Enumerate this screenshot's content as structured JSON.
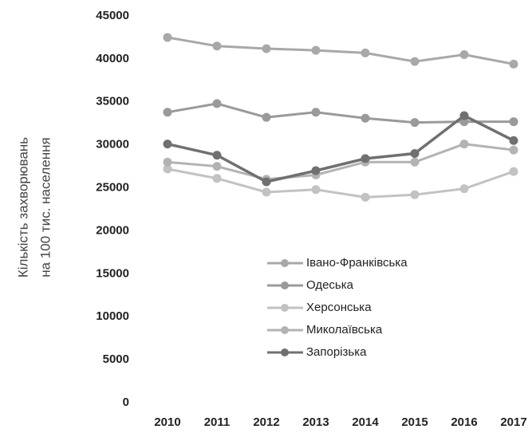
{
  "chart_data": {
    "type": "line",
    "y_label": [
      "Кількість захворювань",
      "на 100 тис. населення"
    ],
    "categories": [
      "2010",
      "2011",
      "2012",
      "2013",
      "2014",
      "2015",
      "2016",
      "2017"
    ],
    "series": [
      {
        "name": "Івано-Франківська",
        "color": "#a8a8a8",
        "values": [
          42500,
          41500,
          41200,
          41000,
          40700,
          39700,
          40500,
          39400
        ]
      },
      {
        "name": "Одеська",
        "color": "#9a9a9a",
        "values": [
          33800,
          34800,
          33200,
          33800,
          33100,
          32600,
          32700,
          32700
        ]
      },
      {
        "name": "Херсонська",
        "color": "#c2c2c2",
        "values": [
          27200,
          26100,
          24500,
          24800,
          23900,
          24200,
          24900,
          26900
        ]
      },
      {
        "name": "Миколаївська",
        "color": "#b3b3b3",
        "values": [
          28000,
          27500,
          26000,
          26500,
          28000,
          28000,
          30100,
          29400
        ]
      },
      {
        "name": "Запорізька",
        "color": "#707070",
        "values": [
          30100,
          28800,
          25700,
          27000,
          28400,
          29000,
          33400,
          30500
        ]
      }
    ],
    "ylim": [
      0,
      45000
    ],
    "yticks": [
      0,
      5000,
      10000,
      15000,
      20000,
      25000,
      30000,
      35000,
      40000,
      45000
    ],
    "grid": false,
    "legend": "center"
  }
}
